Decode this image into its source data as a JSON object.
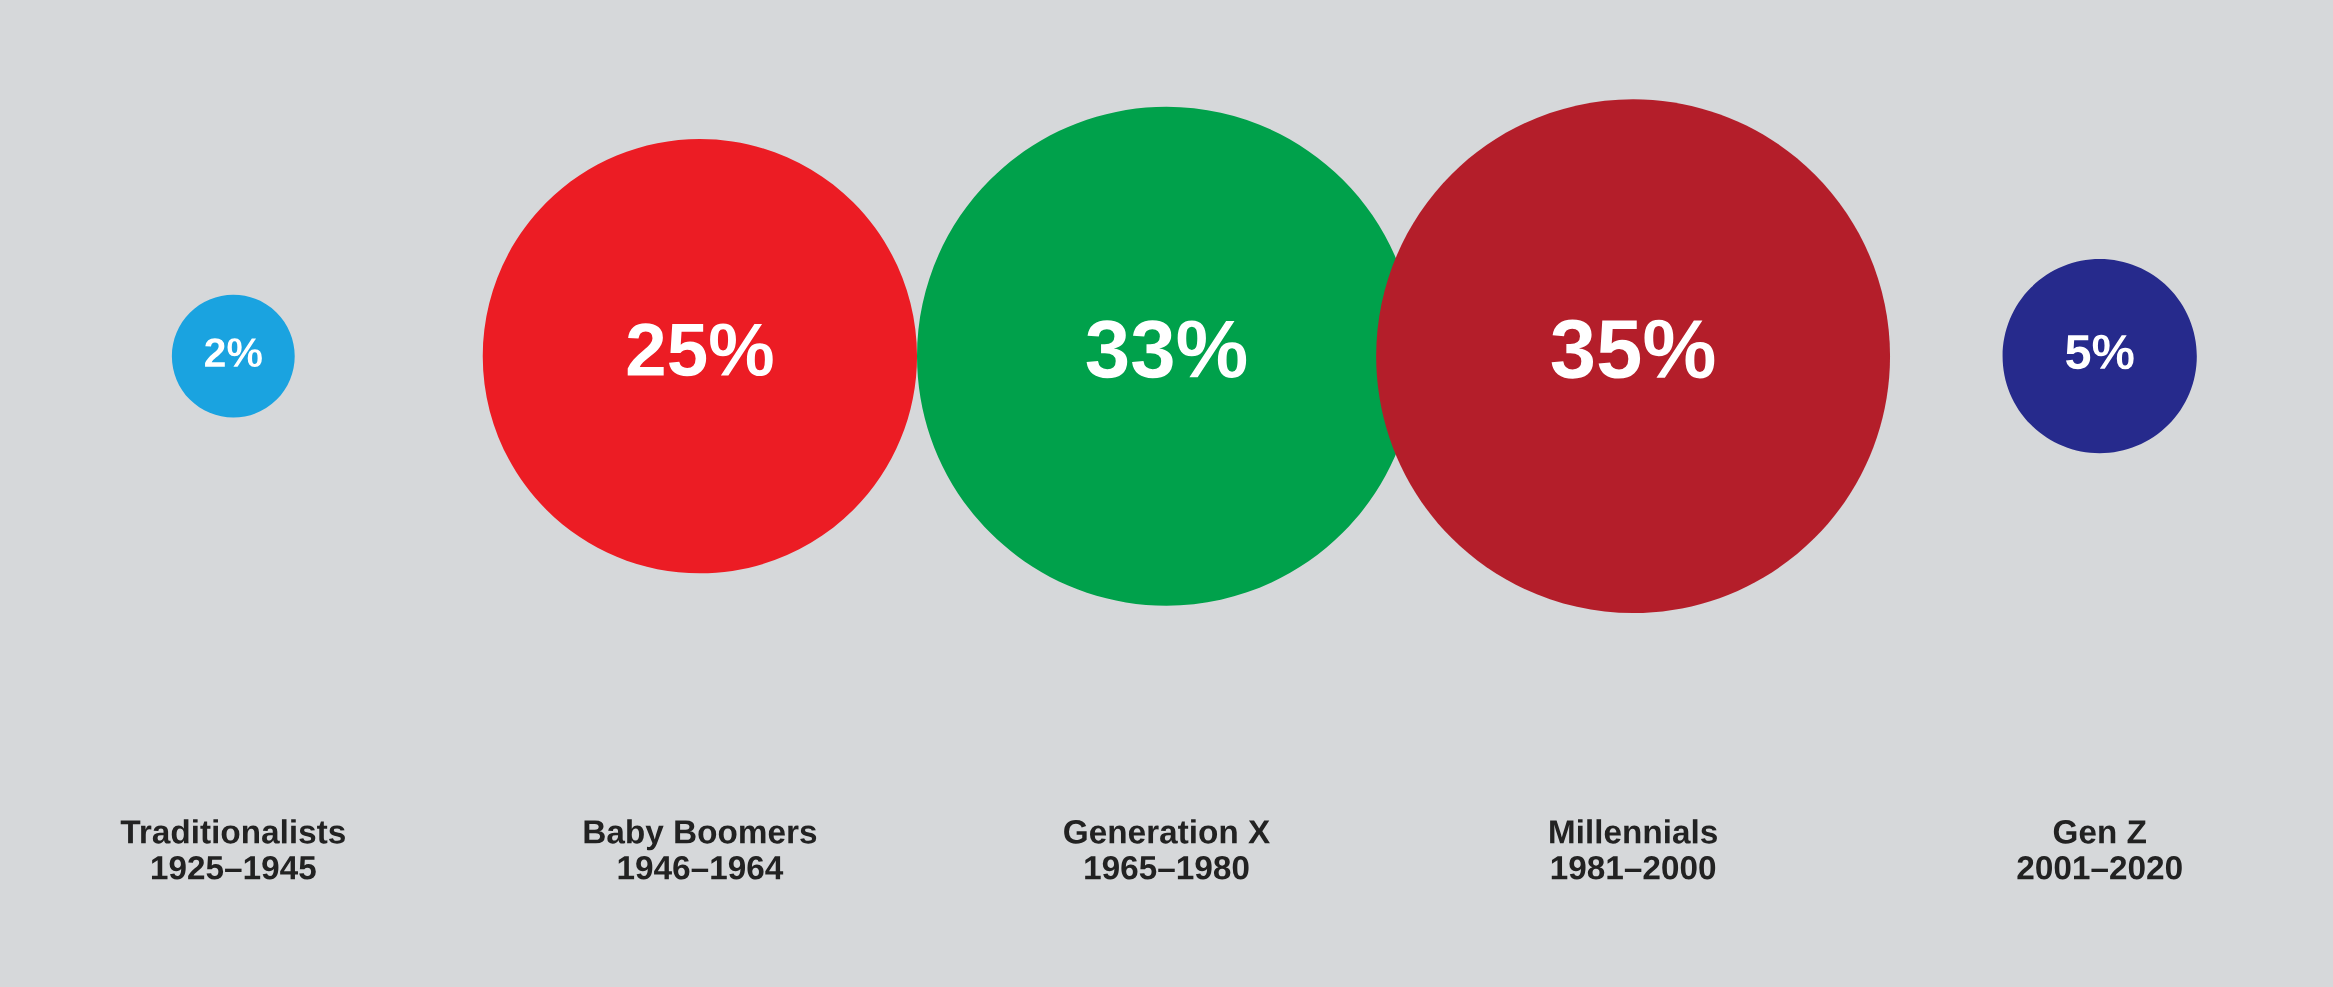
{
  "chart_data": {
    "type": "other",
    "categories": [
      "Traditionalists\n1925–1945",
      "Baby Boomers\n1946–1964",
      "Generation X\n1965–1980",
      "Millennials\n1981–2000",
      "Gen Z\n2001–2020"
    ],
    "values": [
      2,
      25,
      33,
      35,
      5
    ],
    "value_labels": [
      "2%",
      "25%",
      "33%",
      "35%",
      "5%"
    ],
    "colors": [
      "#1aa3e0",
      "#ec1c24",
      "#00a14b",
      "#b41e2a",
      "#262a8c"
    ]
  }
}
